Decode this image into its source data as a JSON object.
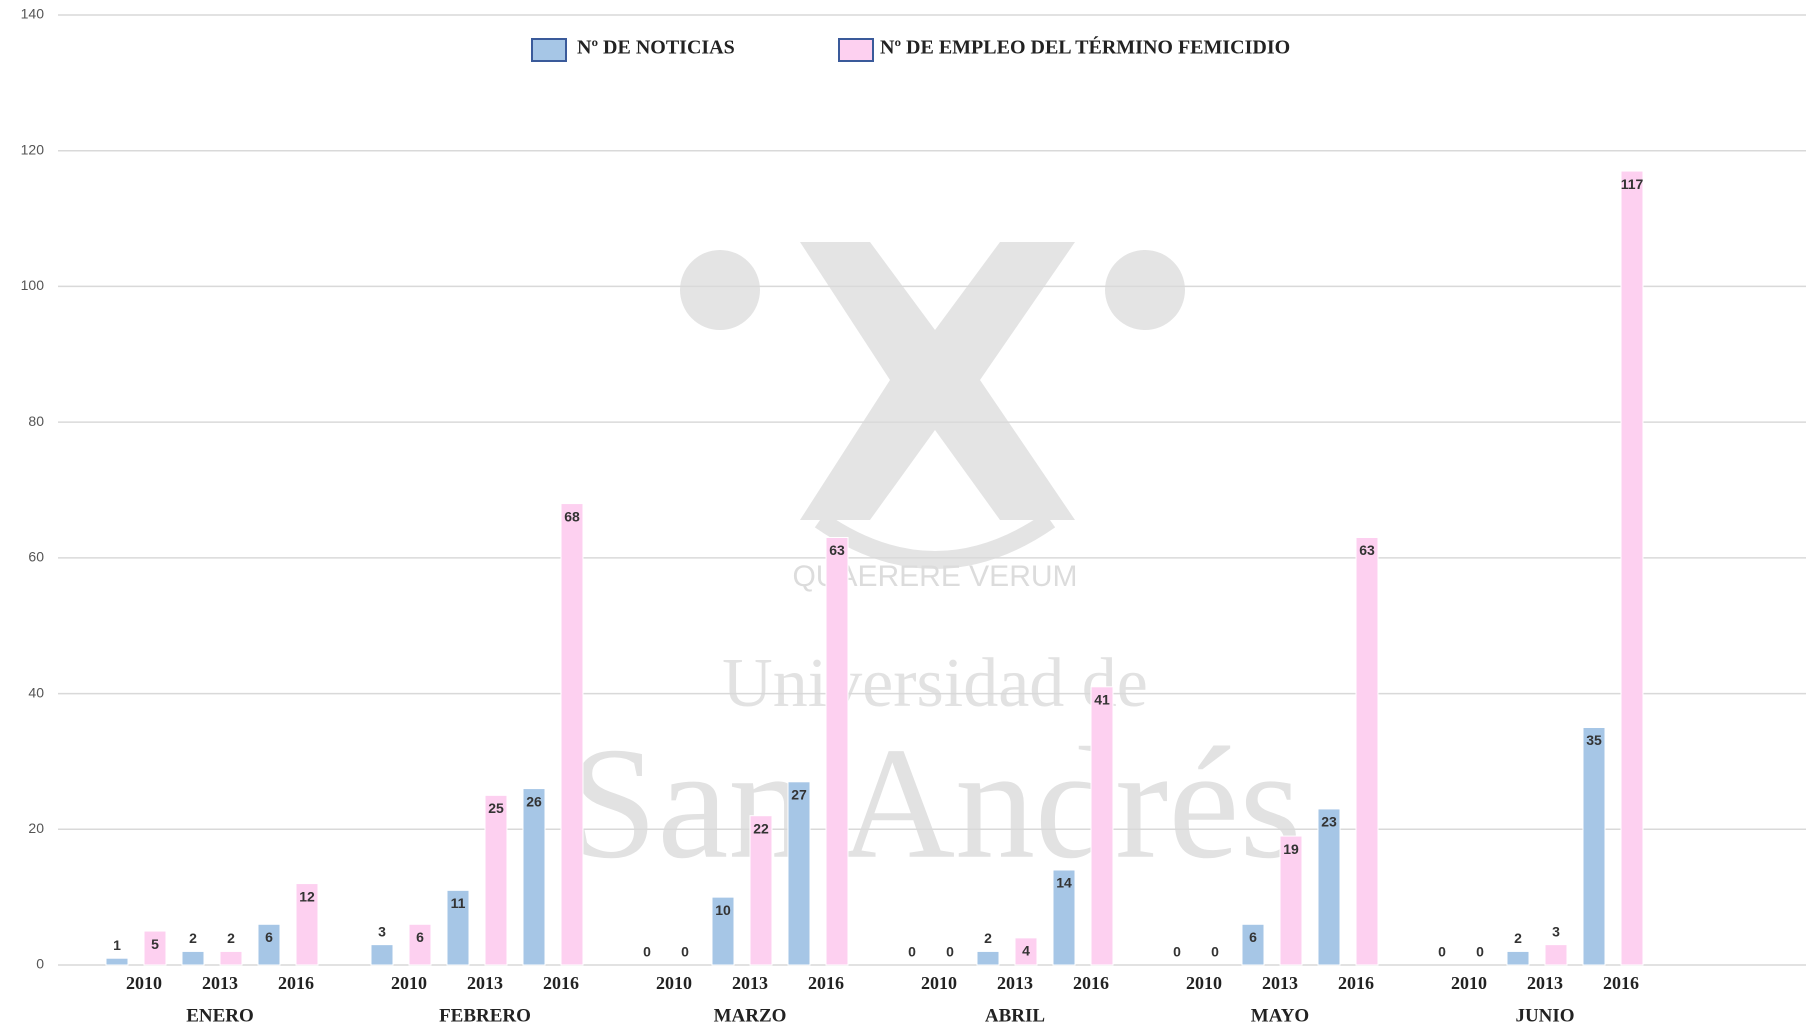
{
  "chart_data": {
    "type": "bar",
    "groups": [
      "ENERO",
      "FEBRERO",
      "MARZO",
      "ABRIL",
      "MAYO",
      "JUNIO"
    ],
    "categories": [
      "2010",
      "2013",
      "2016",
      "2010",
      "2013",
      "2016",
      "2010",
      "2013",
      "2016",
      "2010",
      "2013",
      "2016",
      "2010",
      "2013",
      "2016",
      "2010",
      "2013",
      "2016"
    ],
    "series": [
      {
        "name": "Nº DE NOTICIAS",
        "color": "#a6c6e6",
        "values": [
          1,
          2,
          6,
          3,
          11,
          26,
          0,
          10,
          27,
          0,
          2,
          14,
          0,
          6,
          23,
          0,
          2,
          35
        ]
      },
      {
        "name": "Nº DE EMPLEO DEL TÉRMINO FEMICIDIO",
        "color": "#fdd0f0",
        "values": [
          5,
          2,
          12,
          6,
          25,
          68,
          0,
          22,
          63,
          0,
          4,
          41,
          0,
          19,
          63,
          0,
          3,
          117
        ]
      }
    ],
    "ylim": [
      0,
      140
    ],
    "yticks": [
      0,
      20,
      40,
      60,
      80,
      100,
      120,
      140
    ],
    "grid": true,
    "watermark": [
      "QUAERERE VERUM",
      "Universidad de",
      "San Andrés"
    ]
  }
}
